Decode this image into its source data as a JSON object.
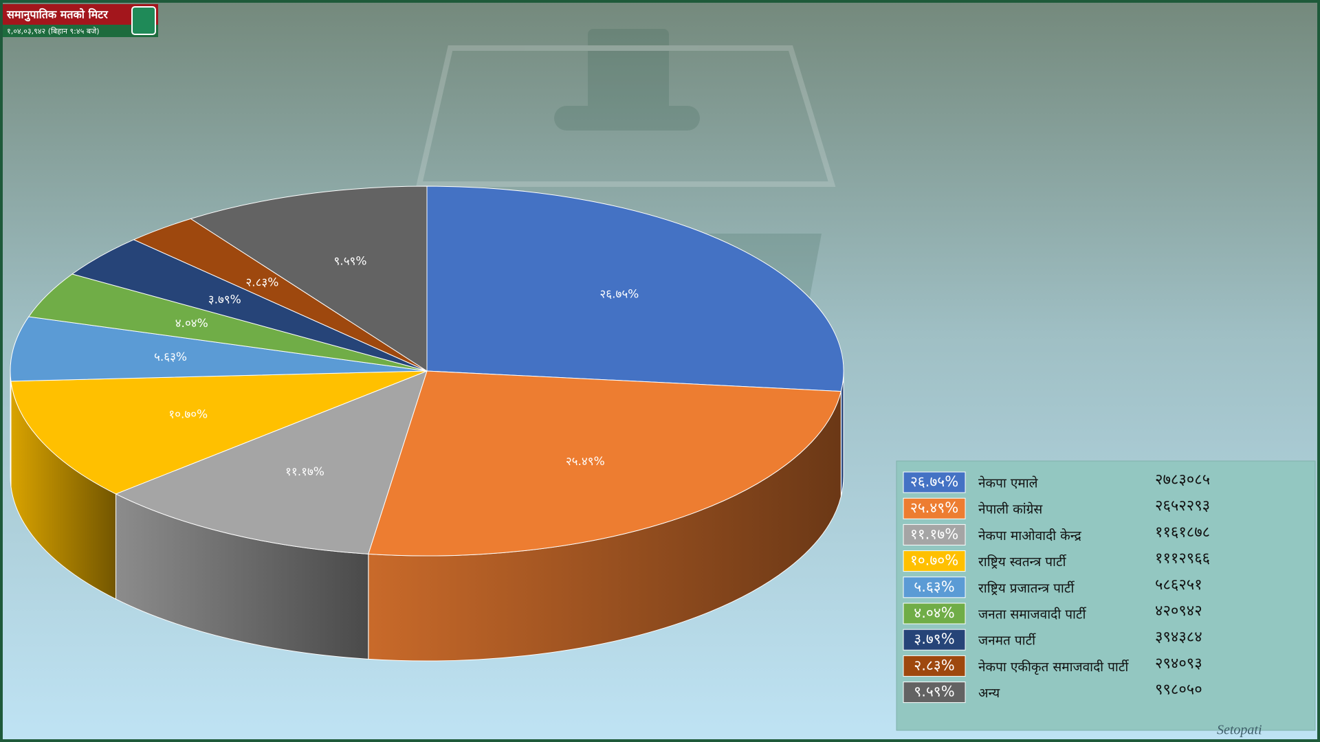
{
  "header": {
    "title": "समानुपातिक मतको मिटर",
    "subtitle": "१,०४,०३,९४२ (बिहान ९:४५ बजे)"
  },
  "chart_data": {
    "type": "pie",
    "categories": [
      "नेकपा एमाले",
      "नेपाली कांग्रेस",
      "नेकपा माओवादी केन्द्र",
      "राष्ट्रिय स्वतन्त्र पार्टी",
      "राष्ट्रिय प्रजातन्त्र पार्टी",
      "जनता समाजवादी पार्टी",
      "जनमत पार्टी",
      "नेकपा एकीकृत समाजवादी पार्टी",
      "अन्य"
    ],
    "values": [
      26.75,
      25.49,
      11.17,
      10.7,
      5.63,
      4.04,
      3.79,
      2.83,
      9.59
    ],
    "value_labels": [
      "२६.७५%",
      "२५.४९%",
      "११.१७%",
      "१०.७०%",
      "५.६३%",
      "४.०४%",
      "३.७९%",
      "२.८३%",
      "९.५९%"
    ],
    "votes": [
      2783085,
      2652293,
      1161878,
      1112966,
      586251,
      420942,
      394384,
      294093,
      998050
    ],
    "vote_labels": [
      "२७८३०८५",
      "२६५२२९३",
      "११६१८७८",
      "१११२९६६",
      "५८६२५१",
      "४२०९४२",
      "३९४३८४",
      "२९४०९३",
      "९९८०५०"
    ],
    "colors": [
      "#4472c4",
      "#ed7d31",
      "#a5a5a5",
      "#ffc000",
      "#5b9bd5",
      "#70ad47",
      "#264478",
      "#9e480e",
      "#636363"
    ]
  },
  "footer": {
    "brand": "Setopati"
  }
}
